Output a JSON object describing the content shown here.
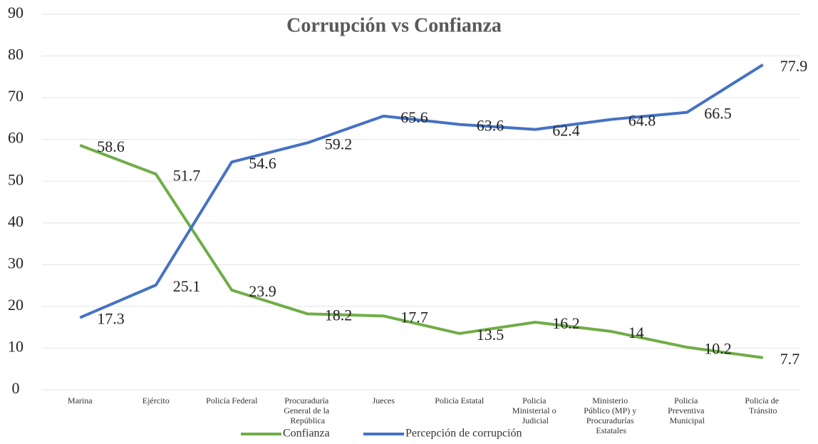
{
  "chart_data": {
    "type": "line",
    "title": "Corrupción vs Confianza",
    "categories": [
      "Marina",
      "Ejército",
      "Policía Federal",
      "Procuraduría General de la República",
      "Jueces",
      "Policía Estatal",
      "Policía Ministerial o Judicial",
      "Ministerio Público (MP) y Procuradurías Estatales",
      "Policía Preventiva Municipal",
      "Policía de Tránsito"
    ],
    "series": [
      {
        "name": "Confianza",
        "color": "#70ad47",
        "values": [
          58.6,
          51.7,
          23.9,
          18.2,
          17.7,
          13.5,
          16.2,
          14,
          10.2,
          7.7
        ]
      },
      {
        "name": "Percepción de corrupción",
        "color": "#4472c4",
        "values": [
          17.3,
          25.1,
          54.6,
          59.2,
          65.6,
          63.6,
          62.4,
          64.8,
          66.5,
          77.9
        ]
      }
    ],
    "ylim": [
      0,
      90
    ],
    "yticks": [
      0,
      10,
      20,
      30,
      40,
      50,
      60,
      70,
      80,
      90
    ],
    "grid": true,
    "legend": "bottom"
  }
}
